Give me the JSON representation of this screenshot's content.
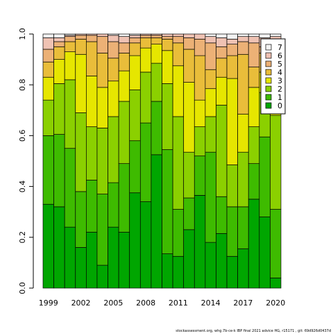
{
  "chart_data": {
    "type": "stacked_bar",
    "categories": [
      "1999",
      null,
      null,
      "2002",
      null,
      null,
      "2005",
      null,
      null,
      "2008",
      null,
      null,
      "2011",
      null,
      null,
      "2014",
      null,
      null,
      "2017",
      null,
      null,
      "2020"
    ],
    "series": [
      {
        "name": "0",
        "color": "#00A600",
        "values": [
          0.33,
          0.32,
          0.24,
          0.16,
          0.22,
          0.09,
          0.24,
          0.22,
          0.375,
          0.34,
          0.525,
          0.135,
          0.125,
          0.23,
          0.365,
          0.18,
          0.215,
          0.125,
          0.155,
          0.35,
          0.28,
          0.04
        ]
      },
      {
        "name": "1",
        "color": "#3EBB00",
        "values": [
          0.27,
          0.285,
          0.31,
          0.22,
          0.205,
          0.28,
          0.175,
          0.27,
          0.205,
          0.31,
          0.21,
          0.41,
          0.185,
          0.125,
          0.155,
          0.355,
          0.145,
          0.195,
          0.165,
          0.14,
          0.315,
          0.27
        ]
      },
      {
        "name": "2",
        "color": "#8BD000",
        "values": [
          0.14,
          0.2,
          0.27,
          0.31,
          0.21,
          0.26,
          0.26,
          0.245,
          0.2,
          0.2,
          0.15,
          0.26,
          0.365,
          0.18,
          0.115,
          0.14,
          0.36,
          0.165,
          0.215,
          0.145,
          0.175,
          0.37
        ]
      },
      {
        "name": "3",
        "color": "#E6E600",
        "values": [
          0.09,
          0.095,
          0.11,
          0.23,
          0.2,
          0.16,
          0.14,
          0.12,
          0.135,
          0.095,
          0.075,
          0.13,
          0.2,
          0.275,
          0.105,
          0.11,
          0.11,
          0.34,
          0.15,
          0.155,
          0.08,
          0.14
        ]
      },
      {
        "name": "4",
        "color": "#E9BD3A",
        "values": [
          0.06,
          0.05,
          0.04,
          0.06,
          0.135,
          0.135,
          0.09,
          0.07,
          0.05,
          0.04,
          0.025,
          0.045,
          0.09,
          0.13,
          0.175,
          0.075,
          0.075,
          0.09,
          0.235,
          0.08,
          0.075,
          0.1
        ]
      },
      {
        "name": "5",
        "color": "#ECB176",
        "values": [
          0.05,
          0.02,
          0.02,
          0.015,
          0.025,
          0.065,
          0.065,
          0.04,
          0.02,
          0.01,
          0.01,
          0.01,
          0.025,
          0.045,
          0.065,
          0.105,
          0.045,
          0.045,
          0.05,
          0.095,
          0.025,
          0.05
        ]
      },
      {
        "name": "6",
        "color": "#EFC2B3",
        "values": [
          0.045,
          0.015,
          0.005,
          0.005,
          0.005,
          0.01,
          0.025,
          0.025,
          0.01,
          0.005,
          0.005,
          0.01,
          0.01,
          0.015,
          0.02,
          0.025,
          0.035,
          0.02,
          0.02,
          0.025,
          0.035,
          0.02
        ]
      },
      {
        "name": "7",
        "color": "#F2F2F2",
        "values": [
          0.015,
          0.015,
          0.005,
          0,
          0,
          0,
          0.005,
          0.01,
          0.005,
          0,
          0,
          0,
          0,
          0,
          0,
          0.01,
          0.015,
          0.02,
          0.01,
          0.01,
          0.015,
          0.01
        ]
      }
    ],
    "ylim": [
      0,
      1
    ],
    "yticks": [
      {
        "value": 0,
        "label": "0.0"
      },
      0.2,
      0.4,
      0.6,
      0.8,
      {
        "value": 1,
        "label": "1.0"
      }
    ],
    "legend": "topright",
    "footnote": "stockassessment.org, whg.7b-ce-k IBP final 2021 advice HG, r15171 , git: 69d926d0437d"
  }
}
